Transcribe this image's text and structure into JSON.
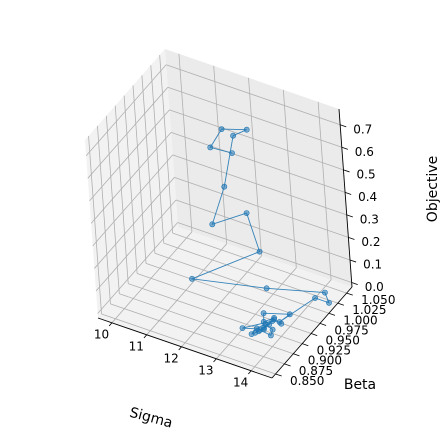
{
  "chart_data": {
    "type": "scatter",
    "projection": "3d",
    "xlabel": "Sigma",
    "ylabel": "Beta",
    "zlabel": "Objective",
    "x_ticks": [
      "10",
      "11",
      "12",
      "13",
      "14"
    ],
    "y_ticks": [
      "0.850",
      "0.875",
      "0.900",
      "0.925",
      "0.950",
      "0.975",
      "1.000",
      "1.025",
      "1.050"
    ],
    "z_ticks": [
      "0.0",
      "0.1",
      "0.2",
      "0.3",
      "0.4",
      "0.5",
      "0.6",
      "0.7"
    ],
    "xlim": [
      9.6,
      14.6
    ],
    "ylim": [
      0.84,
      1.065
    ],
    "zlim": [
      -0.02,
      0.77
    ],
    "grid": true,
    "connected": true,
    "series_color": "#1f77b4",
    "series": [
      {
        "points": [
          {
            "x": 12.6,
            "y": 0.955,
            "z": 0.665
          },
          {
            "x": 12.2,
            "y": 0.935,
            "z": 0.705
          },
          {
            "x": 12.4,
            "y": 0.95,
            "z": 0.77
          },
          {
            "x": 12.8,
            "y": 0.98,
            "z": 0.735
          },
          {
            "x": 12.5,
            "y": 0.97,
            "z": 0.71
          },
          {
            "x": 12.3,
            "y": 0.955,
            "z": 0.5
          },
          {
            "x": 12.15,
            "y": 0.93,
            "z": 0.37
          },
          {
            "x": 12.9,
            "y": 0.955,
            "z": 0.415
          },
          {
            "x": 13.2,
            "y": 0.955,
            "z": 0.26
          },
          {
            "x": 12.0,
            "y": 0.88,
            "z": 0.21
          },
          {
            "x": 13.5,
            "y": 0.94,
            "z": 0.14
          },
          {
            "x": 14.3,
            "y": 1.02,
            "z": 0.02
          },
          {
            "x": 14.4,
            "y": 1.02,
            "z": -0.02
          },
          {
            "x": 14.0,
            "y": 1.02,
            "z": -0.02
          },
          {
            "x": 13.75,
            "y": 0.945,
            "z": -0.005
          },
          {
            "x": 13.9,
            "y": 0.96,
            "z": 0.01
          },
          {
            "x": 13.3,
            "y": 0.945,
            "z": 0.01
          },
          {
            "x": 13.4,
            "y": 0.935,
            "z": -0.005
          },
          {
            "x": 13.6,
            "y": 0.945,
            "z": 0.005
          },
          {
            "x": 13.5,
            "y": 0.925,
            "z": -0.015
          },
          {
            "x": 13.1,
            "y": 0.905,
            "z": 0.005
          },
          {
            "x": 13.6,
            "y": 0.94,
            "z": 0.0
          },
          {
            "x": 13.55,
            "y": 0.935,
            "z": -0.01
          },
          {
            "x": 13.45,
            "y": 0.93,
            "z": -0.02
          },
          {
            "x": 13.4,
            "y": 0.92,
            "z": -0.02
          },
          {
            "x": 13.35,
            "y": 0.915,
            "z": -0.02
          },
          {
            "x": 13.3,
            "y": 0.91,
            "z": -0.02
          },
          {
            "x": 13.35,
            "y": 0.92,
            "z": -0.01
          },
          {
            "x": 13.5,
            "y": 0.93,
            "z": 0.0
          },
          {
            "x": 13.7,
            "y": 0.93,
            "z": -0.015
          },
          {
            "x": 13.75,
            "y": 0.92,
            "z": -0.02
          },
          {
            "x": 13.5,
            "y": 0.915,
            "z": 0.0
          },
          {
            "x": 13.65,
            "y": 0.94,
            "z": 0.01
          },
          {
            "x": 13.8,
            "y": 0.945,
            "z": -0.01
          }
        ]
      }
    ]
  }
}
